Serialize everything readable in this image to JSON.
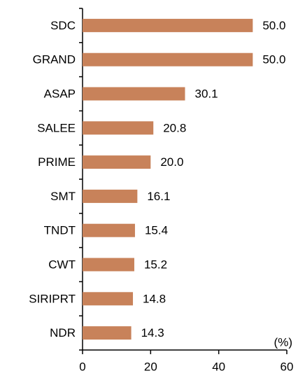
{
  "chart_data": {
    "type": "bar",
    "orientation": "horizontal",
    "categories": [
      "SDC",
      "GRAND",
      "ASAP",
      "SALEE",
      "PRIME",
      "SMT",
      "TNDT",
      "CWT",
      "SIRIPRT",
      "NDR"
    ],
    "values": [
      50,
      50,
      30.1,
      20.8,
      20,
      16.1,
      15.4,
      15.2,
      14.8,
      14.3
    ],
    "value_labels": [
      "50.0",
      "50.0",
      "30.1",
      "20.8",
      "20.0",
      "16.1",
      "15.4",
      "15.2",
      "14.8",
      "14.3"
    ],
    "color": "#c8825a",
    "xlabel": "(%)",
    "xlim": [
      0,
      60
    ],
    "xticks": [
      0,
      20,
      40,
      60
    ],
    "grid": false
  }
}
